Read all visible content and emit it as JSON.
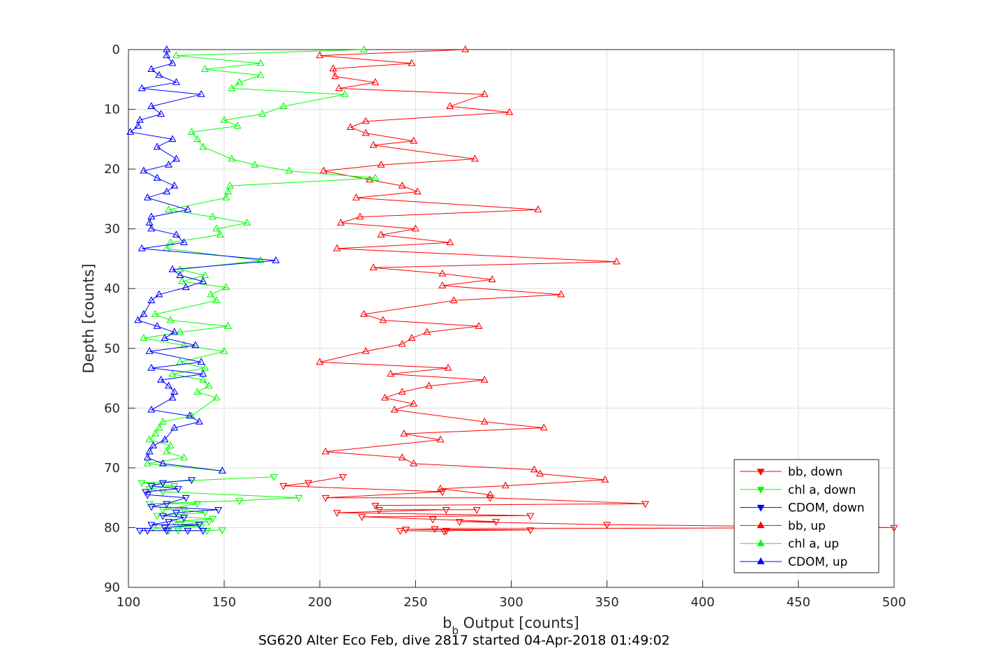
{
  "caption": "SG620 Alter Eco Feb, dive 2817 started 04-Apr-2018 01:49:02",
  "colors": {
    "bb": "#ff0000",
    "chl": "#00ff00",
    "cdom": "#0000ff",
    "grid": "#dfdfdf",
    "axis": "#262626"
  },
  "chart_data": {
    "type": "line",
    "title": "",
    "xlabel_main": "b",
    "xlabel_sub": "b",
    "xlabel_rest": "Output [counts]",
    "ylabel": "Depth [counts]",
    "xlim": [
      100,
      500
    ],
    "ylim": [
      0,
      90
    ],
    "y_reversed": true,
    "grid": true,
    "xticks": [
      100,
      150,
      200,
      250,
      300,
      350,
      400,
      450,
      500
    ],
    "yticks": [
      0,
      10,
      20,
      30,
      40,
      50,
      60,
      70,
      80,
      90
    ],
    "legend_position": "bottom-right",
    "series": [
      {
        "name": "bb, down",
        "key": "bb",
        "marker": "down",
        "points": [
          [
            212,
            71.5
          ],
          [
            194,
            72.5
          ],
          [
            181,
            73
          ],
          [
            264,
            74
          ],
          [
            203,
            75
          ],
          [
            289,
            75
          ],
          [
            370,
            76
          ],
          [
            229,
            76.3
          ],
          [
            231,
            77
          ],
          [
            282,
            77
          ],
          [
            266,
            77
          ],
          [
            209,
            77.5
          ],
          [
            310,
            78
          ],
          [
            222,
            78.2
          ],
          [
            259,
            78.6
          ],
          [
            292,
            79
          ],
          [
            273,
            79
          ],
          [
            350,
            79.5
          ],
          [
            500,
            80
          ],
          [
            260,
            80.2
          ],
          [
            245,
            80.3
          ],
          [
            310,
            80.4
          ],
          [
            266,
            80.5
          ],
          [
            265,
            80.6
          ],
          [
            242,
            80.5
          ]
        ]
      },
      {
        "name": "chl a, down",
        "key": "chl",
        "marker": "down",
        "points": [
          [
            176,
            71.5
          ],
          [
            107,
            72.5
          ],
          [
            124,
            73
          ],
          [
            111,
            73.5
          ],
          [
            118,
            74
          ],
          [
            189,
            75
          ],
          [
            158,
            75.5
          ],
          [
            111,
            76
          ],
          [
            136,
            76
          ],
          [
            118,
            77
          ],
          [
            129,
            77
          ],
          [
            140,
            77.5
          ],
          [
            115,
            78
          ],
          [
            144,
            78.5
          ],
          [
            124,
            79
          ],
          [
            142,
            79
          ],
          [
            127,
            79.5
          ],
          [
            138,
            79.8
          ],
          [
            113,
            80
          ],
          [
            121,
            80.5
          ],
          [
            126,
            80.5
          ],
          [
            141,
            80.5
          ],
          [
            149,
            80.4
          ]
        ]
      },
      {
        "name": "CDOM, down",
        "key": "cdom",
        "marker": "down",
        "points": [
          [
            133,
            72
          ],
          [
            118,
            72.5
          ],
          [
            112,
            73
          ],
          [
            126,
            73.5
          ],
          [
            109,
            74
          ],
          [
            110,
            74.5
          ],
          [
            130,
            75
          ],
          [
            120,
            76
          ],
          [
            112,
            76.5
          ],
          [
            147,
            77
          ],
          [
            125,
            77.5
          ],
          [
            118,
            78
          ],
          [
            129,
            78.3
          ],
          [
            121,
            79
          ],
          [
            112,
            79.5
          ],
          [
            137,
            79.5
          ],
          [
            119,
            80
          ],
          [
            120,
            80.5
          ],
          [
            131,
            80.5
          ],
          [
            139,
            80.5
          ],
          [
            106,
            80.5
          ],
          [
            110,
            80.5
          ]
        ]
      },
      {
        "name": "bb, up",
        "key": "bb",
        "marker": "up",
        "points": [
          [
            276,
            0
          ],
          [
            200,
            1
          ],
          [
            248,
            2.3
          ],
          [
            207,
            3.2
          ],
          [
            208,
            4.5
          ],
          [
            229,
            5.5
          ],
          [
            210,
            6.5
          ],
          [
            286,
            7.5
          ],
          [
            268,
            9.5
          ],
          [
            299,
            10.5
          ],
          [
            224,
            12
          ],
          [
            216,
            13
          ],
          [
            224,
            14
          ],
          [
            249,
            15.3
          ],
          [
            228,
            16
          ],
          [
            281,
            18.3
          ],
          [
            232,
            19.3
          ],
          [
            202,
            20.3
          ],
          [
            226,
            21.8
          ],
          [
            243,
            22.8
          ],
          [
            251,
            23.8
          ],
          [
            219,
            24.8
          ],
          [
            314,
            26.8
          ],
          [
            221,
            28
          ],
          [
            211,
            29
          ],
          [
            250,
            30
          ],
          [
            232,
            31
          ],
          [
            268,
            32.3
          ],
          [
            209,
            33.3
          ],
          [
            355,
            35.5
          ],
          [
            228,
            36.5
          ],
          [
            264,
            37.5
          ],
          [
            290,
            38.5
          ],
          [
            264,
            39.5
          ],
          [
            326,
            41
          ],
          [
            270,
            42
          ],
          [
            223,
            44.3
          ],
          [
            233,
            45.3
          ],
          [
            283,
            46.3
          ],
          [
            256,
            47.3
          ],
          [
            248,
            48.3
          ],
          [
            243,
            49.3
          ],
          [
            224,
            50.5
          ],
          [
            200,
            52.3
          ],
          [
            267,
            53.3
          ],
          [
            237,
            54.3
          ],
          [
            286,
            55.3
          ],
          [
            257,
            56.3
          ],
          [
            243,
            57.3
          ],
          [
            234,
            58.3
          ],
          [
            249,
            59.3
          ],
          [
            239,
            60.3
          ],
          [
            286,
            62.3
          ],
          [
            317,
            63.3
          ],
          [
            244,
            64.3
          ],
          [
            263,
            65.3
          ],
          [
            203,
            67.3
          ],
          [
            243,
            68.3
          ],
          [
            249,
            69.3
          ],
          [
            312,
            70.3
          ],
          [
            315,
            71
          ],
          [
            349,
            72
          ],
          [
            297,
            73
          ],
          [
            263,
            73.5
          ],
          [
            289,
            74.5
          ]
        ]
      },
      {
        "name": "chl a, up",
        "key": "chl",
        "marker": "up",
        "points": [
          [
            223,
            0
          ],
          [
            125,
            1
          ],
          [
            169,
            2.3
          ],
          [
            140,
            3.3
          ],
          [
            169,
            4.3
          ],
          [
            158,
            5.5
          ],
          [
            154,
            6.5
          ],
          [
            213,
            7.5
          ],
          [
            181,
            9.5
          ],
          [
            170,
            10.8
          ],
          [
            150,
            11.8
          ],
          [
            157,
            12.8
          ],
          [
            133,
            13.8
          ],
          [
            136,
            15
          ],
          [
            139,
            16.3
          ],
          [
            154,
            18.3
          ],
          [
            166,
            19.3
          ],
          [
            184,
            20.3
          ],
          [
            229,
            21.5
          ],
          [
            153,
            22.8
          ],
          [
            152,
            23.8
          ],
          [
            151,
            24.8
          ],
          [
            121,
            26.8
          ],
          [
            144,
            28
          ],
          [
            162,
            29
          ],
          [
            146,
            30
          ],
          [
            148,
            31
          ],
          [
            122,
            32.3
          ],
          [
            120,
            33.3
          ],
          [
            169,
            35.3
          ],
          [
            127,
            36.8
          ],
          [
            140,
            37.8
          ],
          [
            128,
            38.8
          ],
          [
            151,
            39.8
          ],
          [
            143,
            41
          ],
          [
            146,
            42
          ],
          [
            114,
            44.3
          ],
          [
            122,
            45.3
          ],
          [
            152,
            46.3
          ],
          [
            127,
            47.3
          ],
          [
            108,
            48.3
          ],
          [
            129,
            49.5
          ],
          [
            150,
            50.5
          ],
          [
            127,
            52.3
          ],
          [
            140,
            53.3
          ],
          [
            123,
            54.3
          ],
          [
            139,
            55.3
          ],
          [
            142,
            56.3
          ],
          [
            136,
            57.3
          ],
          [
            146,
            58.3
          ],
          [
            133,
            61.3
          ],
          [
            118,
            62.3
          ],
          [
            116,
            63.3
          ],
          [
            114,
            64.3
          ],
          [
            111,
            65.3
          ],
          [
            122,
            66.3
          ],
          [
            120,
            67.3
          ],
          [
            129,
            68.3
          ],
          [
            110,
            69.3
          ],
          [
            149,
            70.5
          ]
        ]
      },
      {
        "name": "CDOM, up",
        "key": "cdom",
        "marker": "up",
        "points": [
          [
            120,
            0
          ],
          [
            120,
            1
          ],
          [
            123,
            2.3
          ],
          [
            112,
            3.3
          ],
          [
            116,
            4.3
          ],
          [
            125,
            5.5
          ],
          [
            107,
            6.5
          ],
          [
            138,
            7.5
          ],
          [
            112,
            9.5
          ],
          [
            117,
            10.8
          ],
          [
            106,
            11.8
          ],
          [
            105,
            12.8
          ],
          [
            101,
            13.8
          ],
          [
            123,
            15
          ],
          [
            115,
            16.3
          ],
          [
            125,
            18.3
          ],
          [
            121,
            19.3
          ],
          [
            108,
            20.3
          ],
          [
            115,
            21.5
          ],
          [
            124,
            22.8
          ],
          [
            120,
            23.8
          ],
          [
            110,
            24.8
          ],
          [
            131,
            26.8
          ],
          [
            112,
            28
          ],
          [
            111,
            29
          ],
          [
            112,
            30
          ],
          [
            125,
            31
          ],
          [
            129,
            32.3
          ],
          [
            107,
            33.3
          ],
          [
            177,
            35.3
          ],
          [
            123,
            36.8
          ],
          [
            127,
            37.8
          ],
          [
            139,
            38.8
          ],
          [
            130,
            39.8
          ],
          [
            116,
            41
          ],
          [
            112,
            42
          ],
          [
            108,
            44.3
          ],
          [
            105,
            45.3
          ],
          [
            115,
            46.3
          ],
          [
            124,
            47.3
          ],
          [
            119,
            48.3
          ],
          [
            135,
            49.5
          ],
          [
            111,
            50.5
          ],
          [
            138,
            52.3
          ],
          [
            112,
            53.3
          ],
          [
            139,
            54.3
          ],
          [
            117,
            55.3
          ],
          [
            121,
            56.3
          ],
          [
            124,
            57.3
          ],
          [
            123,
            58.3
          ],
          [
            112,
            60.3
          ],
          [
            132,
            61.3
          ],
          [
            137,
            62.3
          ],
          [
            124,
            63.3
          ],
          [
            119,
            65.3
          ],
          [
            113,
            66.3
          ],
          [
            111,
            67.3
          ],
          [
            110,
            68.3
          ],
          [
            118,
            69.3
          ],
          [
            149,
            70.5
          ]
        ]
      }
    ]
  }
}
